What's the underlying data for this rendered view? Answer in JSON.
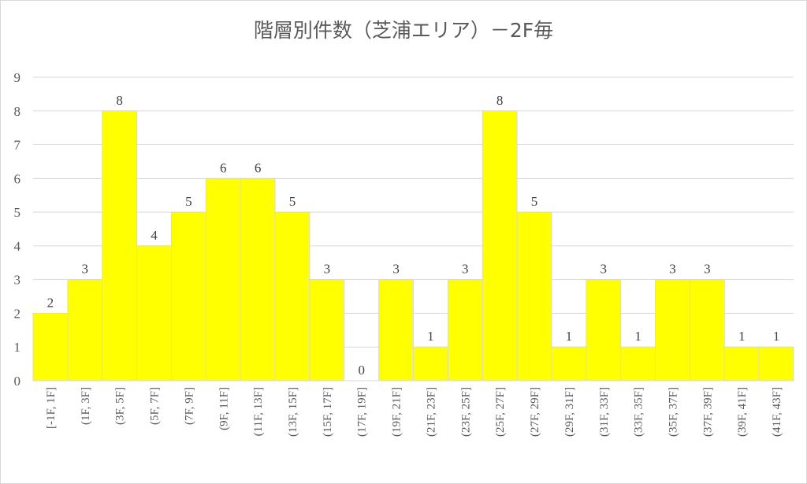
{
  "chart_data": {
    "type": "bar",
    "title": "階層別件数（芝浦エリア）－2F毎",
    "categories": [
      "[-1F, 1F]",
      "(1F, 3F]",
      "(3F, 5F]",
      "(5F, 7F]",
      "(7F, 9F]",
      "(9F, 11F]",
      "(11F, 13F]",
      "(13F, 15F]",
      "(15F, 17F]",
      "(17F, 19F]",
      "(19F, 21F]",
      "(21F, 23F]",
      "(23F, 25F]",
      "(25F, 27F]",
      "(27F, 29F]",
      "(29F, 31F]",
      "(31F, 33F]",
      "(33F, 35F]",
      "(35F, 37F]",
      "(37F, 39F]",
      "(39F, 41F]",
      "(41F, 43F]"
    ],
    "values": [
      2,
      3,
      8,
      4,
      5,
      6,
      6,
      5,
      3,
      0,
      3,
      1,
      3,
      8,
      5,
      1,
      3,
      1,
      3,
      3,
      1,
      1
    ],
    "ylim": [
      0,
      9
    ],
    "yticks": [
      0,
      1,
      2,
      3,
      4,
      5,
      6,
      7,
      8,
      9
    ],
    "grid": true,
    "data_labels": true,
    "bar_color": "#ffff00",
    "legend": "none"
  }
}
